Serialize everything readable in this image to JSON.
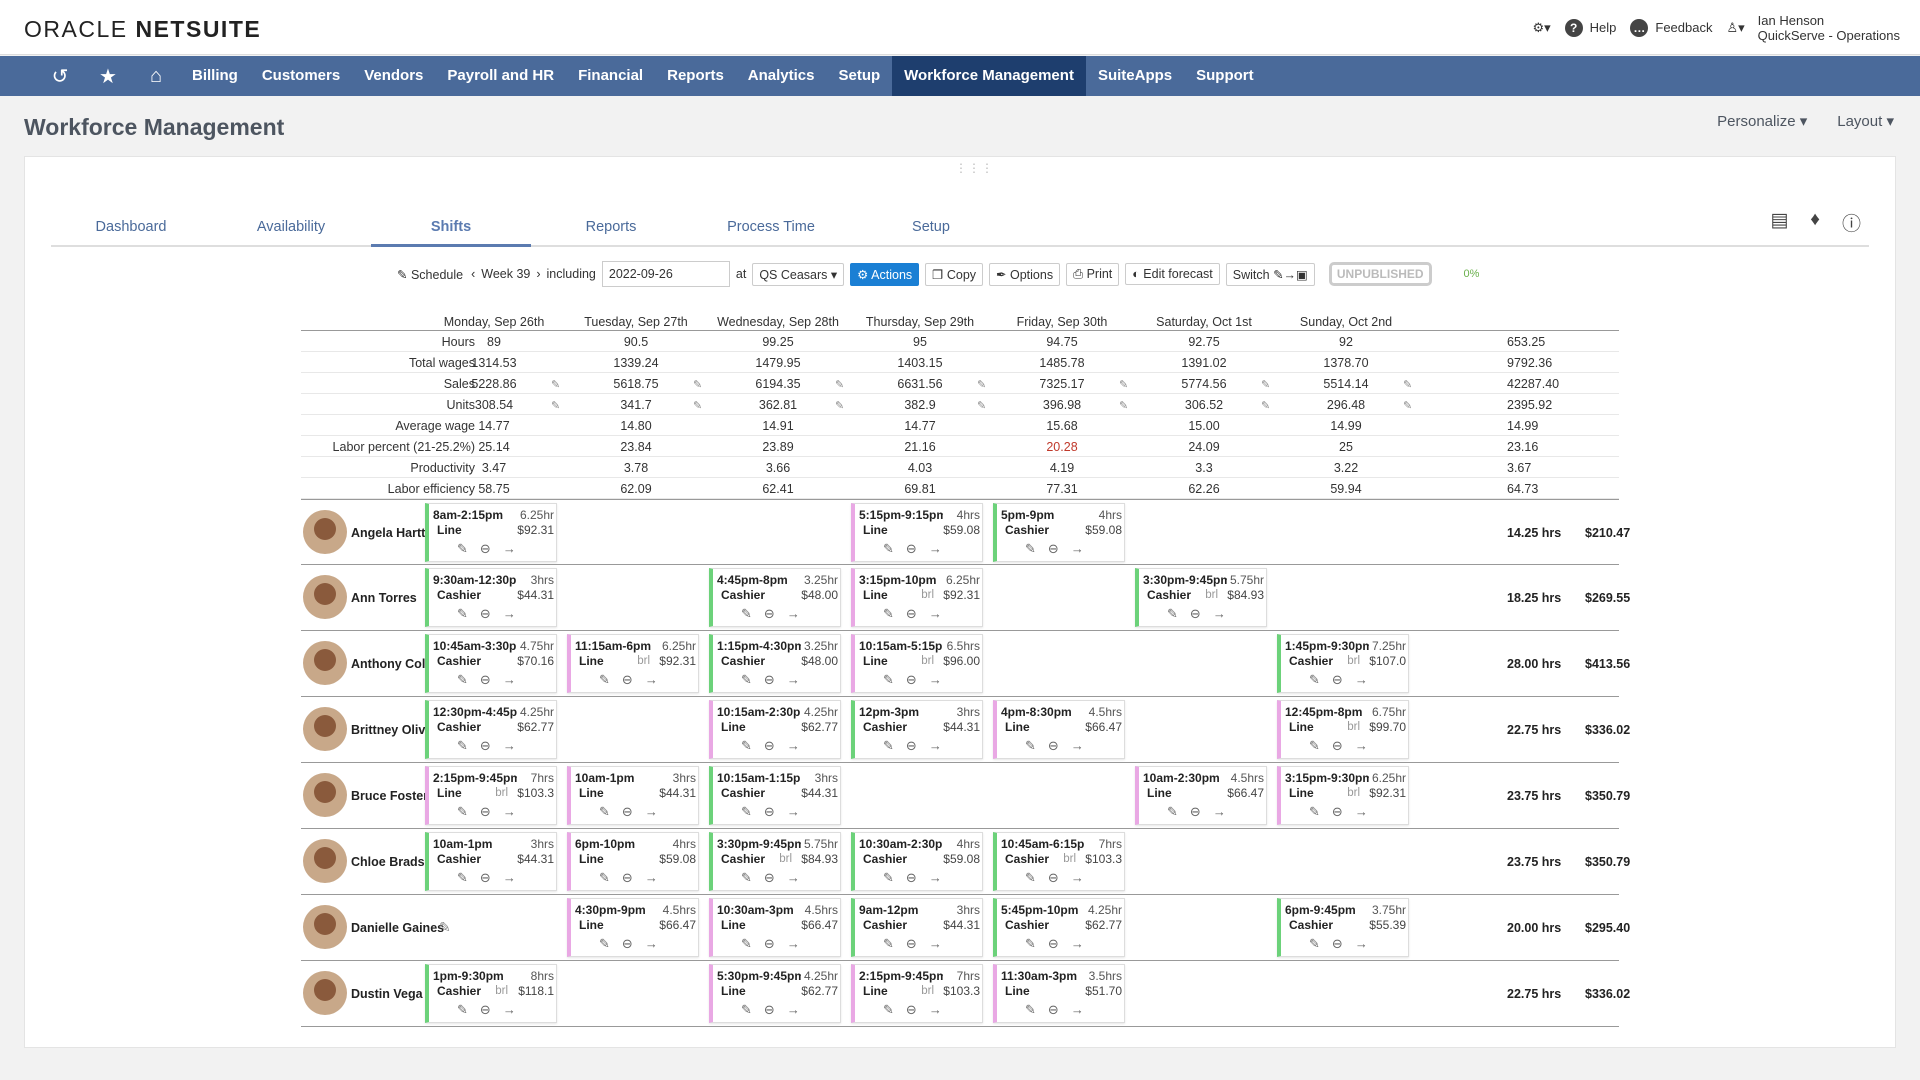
{
  "brand": {
    "oracle": "ORACLE",
    "netsuite": "NETSUITE"
  },
  "topbar": {
    "help": "Help",
    "feedback": "Feedback",
    "user_name": "Ian Henson",
    "user_role": "QuickServe - Operations"
  },
  "nav": {
    "icons": [
      "history-icon",
      "star-icon",
      "home-icon"
    ],
    "items": [
      "Billing",
      "Customers",
      "Vendors",
      "Payroll and HR",
      "Financial",
      "Reports",
      "Analytics",
      "Setup",
      "Workforce Management",
      "SuiteApps",
      "Support"
    ],
    "active": "Workforce Management"
  },
  "page": {
    "title": "Workforce Management",
    "personalize": "Personalize",
    "layout": "Layout"
  },
  "tabs": [
    "Dashboard",
    "Availability",
    "Shifts",
    "Reports",
    "Process Time",
    "Setup"
  ],
  "active_tab": "Shifts",
  "controls": {
    "schedule": "Schedule",
    "week": "Week 39",
    "including": "including",
    "date": "2022-09-26",
    "at": "at",
    "location": "QS Ceasars",
    "actions": "Actions",
    "copy": "Copy",
    "options": "Options",
    "print": "Print",
    "edit_forecast": "Edit forecast",
    "switch": "Switch",
    "status": "UNPUBLISHED",
    "percent": "0%"
  },
  "days": [
    "Monday, Sep 26th",
    "Tuesday, Sep 27th",
    "Wednesday, Sep 28th",
    "Thursday, Sep 29th",
    "Friday, Sep 30th",
    "Saturday, Oct 1st",
    "Sunday, Oct 2nd"
  ],
  "metrics": [
    {
      "label": "Hours",
      "values": [
        "89",
        "90.5",
        "99.25",
        "95",
        "94.75",
        "92.75",
        "92"
      ],
      "total": "653.25"
    },
    {
      "label": "Total wages",
      "values": [
        "1314.53",
        "1339.24",
        "1479.95",
        "1403.15",
        "1485.78",
        "1391.02",
        "1378.70"
      ],
      "total": "9792.36"
    },
    {
      "label": "Sales",
      "values": [
        "5228.86",
        "5618.75",
        "6194.35",
        "6631.56",
        "7325.17",
        "5774.56",
        "5514.14"
      ],
      "total": "42287.40",
      "editable": true
    },
    {
      "label": "Units",
      "values": [
        "308.54",
        "341.7",
        "362.81",
        "382.9",
        "396.98",
        "306.52",
        "296.48"
      ],
      "total": "2395.92",
      "editable": true
    },
    {
      "label": "Average wage",
      "values": [
        "14.77",
        "14.80",
        "14.91",
        "14.77",
        "15.68",
        "15.00",
        "14.99"
      ],
      "total": "14.99"
    },
    {
      "label": "Labor percent (21-25.2%)",
      "values": [
        "25.14",
        "23.84",
        "23.89",
        "21.16",
        "20.28",
        "24.09",
        "25"
      ],
      "total": "23.16",
      "red_index": 4
    },
    {
      "label": "Productivity",
      "values": [
        "3.47",
        "3.78",
        "3.66",
        "4.03",
        "4.19",
        "3.3",
        "3.22"
      ],
      "total": "3.67"
    },
    {
      "label": "Labor efficiency",
      "values": [
        "58.75",
        "62.09",
        "62.41",
        "69.81",
        "77.31",
        "62.26",
        "59.94"
      ],
      "total": "64.73"
    }
  ],
  "employees": [
    {
      "name": "Angela Hartt",
      "total_hours": "14.25 hrs",
      "total_wage": "$210.47",
      "shifts": [
        {
          "day": 0,
          "time": "8am-2:15pm",
          "hours": "6.25hr",
          "role": "Line",
          "pay": "$92.31",
          "brk": "",
          "color": "green"
        },
        {
          "day": 3,
          "time": "5:15pm-9:15pm",
          "hours": "4hrs",
          "role": "Line",
          "pay": "$59.08",
          "brk": "",
          "color": "pink"
        },
        {
          "day": 4,
          "time": "5pm-9pm",
          "hours": "4hrs",
          "role": "Cashier",
          "pay": "$59.08",
          "brk": "",
          "color": "green"
        }
      ]
    },
    {
      "name": "Ann Torres",
      "total_hours": "18.25 hrs",
      "total_wage": "$269.55",
      "shifts": [
        {
          "day": 0,
          "time": "9:30am-12:30p",
          "hours": "3hrs",
          "role": "Cashier",
          "pay": "$44.31",
          "brk": "",
          "color": "green"
        },
        {
          "day": 2,
          "time": "4:45pm-8pm",
          "hours": "3.25hr",
          "role": "Cashier",
          "pay": "$48.00",
          "brk": "",
          "color": "green"
        },
        {
          "day": 3,
          "time": "3:15pm-10pm",
          "hours": "6.25hr",
          "role": "Line",
          "pay": "$92.31",
          "brk": "brl",
          "color": "pink"
        },
        {
          "day": 5,
          "time": "3:30pm-9:45pm",
          "hours": "5.75hr",
          "role": "Cashier",
          "pay": "$84.93",
          "brk": "brl",
          "color": "green"
        }
      ]
    },
    {
      "name": "Anthony Collins",
      "total_hours": "28.00 hrs",
      "total_wage": "$413.56",
      "shifts": [
        {
          "day": 0,
          "time": "10:45am-3:30p",
          "hours": "4.75hr",
          "role": "Cashier",
          "pay": "$70.16",
          "brk": "",
          "color": "green"
        },
        {
          "day": 1,
          "time": "11:15am-6pm",
          "hours": "6.25hr",
          "role": "Line",
          "pay": "$92.31",
          "brk": "brl",
          "color": "pink"
        },
        {
          "day": 2,
          "time": "1:15pm-4:30pm",
          "hours": "3.25hr",
          "role": "Cashier",
          "pay": "$48.00",
          "brk": "",
          "color": "green"
        },
        {
          "day": 3,
          "time": "10:15am-5:15p",
          "hours": "6.5hrs",
          "role": "Line",
          "pay": "$96.00",
          "brk": "brl",
          "color": "pink"
        },
        {
          "day": 6,
          "time": "1:45pm-9:30pm",
          "hours": "7.25hr",
          "role": "Cashier",
          "pay": "$107.0",
          "brk": "brl",
          "color": "green"
        }
      ]
    },
    {
      "name": "Brittney Oliver",
      "total_hours": "22.75 hrs",
      "total_wage": "$336.02",
      "shifts": [
        {
          "day": 0,
          "time": "12:30pm-4:45p",
          "hours": "4.25hr",
          "role": "Cashier",
          "pay": "$62.77",
          "brk": "",
          "color": "green"
        },
        {
          "day": 2,
          "time": "10:15am-2:30p",
          "hours": "4.25hr",
          "role": "Line",
          "pay": "$62.77",
          "brk": "",
          "color": "pink"
        },
        {
          "day": 3,
          "time": "12pm-3pm",
          "hours": "3hrs",
          "role": "Cashier",
          "pay": "$44.31",
          "brk": "",
          "color": "green"
        },
        {
          "day": 4,
          "time": "4pm-8:30pm",
          "hours": "4.5hrs",
          "role": "Line",
          "pay": "$66.47",
          "brk": "",
          "color": "pink"
        },
        {
          "day": 6,
          "time": "12:45pm-8pm",
          "hours": "6.75hr",
          "role": "Line",
          "pay": "$99.70",
          "brk": "brl",
          "color": "pink"
        }
      ]
    },
    {
      "name": "Bruce Foster",
      "total_hours": "23.75 hrs",
      "total_wage": "$350.79",
      "shifts": [
        {
          "day": 0,
          "time": "2:15pm-9:45pm",
          "hours": "7hrs",
          "role": "Line",
          "pay": "$103.3",
          "brk": "brl",
          "color": "pink"
        },
        {
          "day": 1,
          "time": "10am-1pm",
          "hours": "3hrs",
          "role": "Line",
          "pay": "$44.31",
          "brk": "",
          "color": "pink"
        },
        {
          "day": 2,
          "time": "10:15am-1:15p",
          "hours": "3hrs",
          "role": "Cashier",
          "pay": "$44.31",
          "brk": "",
          "color": "green"
        },
        {
          "day": 5,
          "time": "10am-2:30pm",
          "hours": "4.5hrs",
          "role": "Line",
          "pay": "$66.47",
          "brk": "",
          "color": "pink"
        },
        {
          "day": 6,
          "time": "3:15pm-9:30pm",
          "hours": "6.25hr",
          "role": "Line",
          "pay": "$92.31",
          "brk": "brl",
          "color": "pink"
        }
      ]
    },
    {
      "name": "Chloe Bradshaw",
      "total_hours": "23.75 hrs",
      "total_wage": "$350.79",
      "shifts": [
        {
          "day": 0,
          "time": "10am-1pm",
          "hours": "3hrs",
          "role": "Cashier",
          "pay": "$44.31",
          "brk": "",
          "color": "green"
        },
        {
          "day": 1,
          "time": "6pm-10pm",
          "hours": "4hrs",
          "role": "Line",
          "pay": "$59.08",
          "brk": "",
          "color": "pink"
        },
        {
          "day": 2,
          "time": "3:30pm-9:45pm",
          "hours": "5.75hr",
          "role": "Cashier",
          "pay": "$84.93",
          "brk": "brl",
          "color": "green"
        },
        {
          "day": 3,
          "time": "10:30am-2:30p",
          "hours": "4hrs",
          "role": "Cashier",
          "pay": "$59.08",
          "brk": "",
          "color": "green"
        },
        {
          "day": 4,
          "time": "10:45am-6:15p",
          "hours": "7hrs",
          "role": "Cashier",
          "pay": "$103.3",
          "brk": "brl",
          "color": "green"
        }
      ]
    },
    {
      "name": "Danielle Gaines",
      "total_hours": "20.00 hrs",
      "total_wage": "$295.40",
      "shifts": [
        {
          "day": 1,
          "time": "4:30pm-9pm",
          "hours": "4.5hrs",
          "role": "Line",
          "pay": "$66.47",
          "brk": "",
          "color": "pink"
        },
        {
          "day": 2,
          "time": "10:30am-3pm",
          "hours": "4.5hrs",
          "role": "Line",
          "pay": "$66.47",
          "brk": "",
          "color": "pink"
        },
        {
          "day": 3,
          "time": "9am-12pm",
          "hours": "3hrs",
          "role": "Cashier",
          "pay": "$44.31",
          "brk": "",
          "color": "green"
        },
        {
          "day": 4,
          "time": "5:45pm-10pm",
          "hours": "4.25hr",
          "role": "Cashier",
          "pay": "$62.77",
          "brk": "",
          "color": "green"
        },
        {
          "day": 6,
          "time": "6pm-9:45pm",
          "hours": "3.75hr",
          "role": "Cashier",
          "pay": "$55.39",
          "brk": "",
          "color": "green"
        }
      ]
    },
    {
      "name": "Dustin Vega",
      "total_hours": "22.75 hrs",
      "total_wage": "$336.02",
      "shifts": [
        {
          "day": 0,
          "time": "1pm-9:30pm",
          "hours": "8hrs",
          "role": "Cashier",
          "pay": "$118.1",
          "brk": "brl",
          "color": "green"
        },
        {
          "day": 2,
          "time": "5:30pm-9:45pm",
          "hours": "4.25hr",
          "role": "Line",
          "pay": "$62.77",
          "brk": "",
          "color": "pink"
        },
        {
          "day": 3,
          "time": "2:15pm-9:45pm",
          "hours": "7hrs",
          "role": "Line",
          "pay": "$103.3",
          "brk": "brl",
          "color": "pink"
        },
        {
          "day": 4,
          "time": "11:30am-3pm",
          "hours": "3.5hrs",
          "role": "Line",
          "pay": "$51.70",
          "brk": "",
          "color": "pink"
        }
      ]
    }
  ],
  "colors": {
    "nav_bg": "#4a6a9a",
    "nav_active": "#1e3e6e",
    "shift_green": "#6cd27a",
    "shift_pink": "#e9a8e4",
    "actions_blue": "#1a7fd4",
    "labor_red": "#c0392b"
  }
}
